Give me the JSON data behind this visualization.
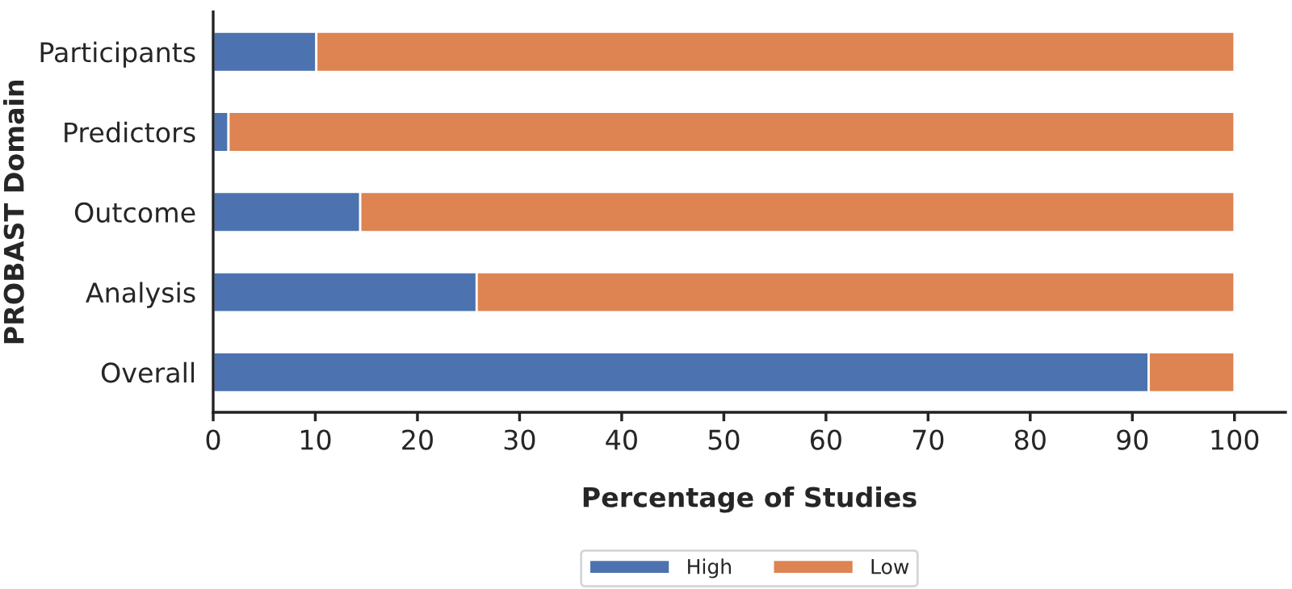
{
  "chart_data": {
    "type": "bar",
    "orientation": "horizontal",
    "stacked": true,
    "xlabel": "Percentage of Studies",
    "ylabel": "PROBAST Domain",
    "categories": [
      "Participants",
      "Predictors",
      "Outcome",
      "Analysis",
      "Overall"
    ],
    "series": [
      {
        "name": "High",
        "color": "#4c72b0",
        "values": [
          10.1,
          1.5,
          14.4,
          25.8,
          91.6
        ]
      },
      {
        "name": "Low",
        "color": "#dd8452",
        "values": [
          89.9,
          98.5,
          85.6,
          74.2,
          8.4
        ]
      }
    ],
    "xlim": [
      0,
      105
    ],
    "xticks": [
      0,
      10,
      20,
      30,
      40,
      50,
      60,
      70,
      80,
      90,
      100
    ],
    "grid": false,
    "legend": "bottom"
  }
}
